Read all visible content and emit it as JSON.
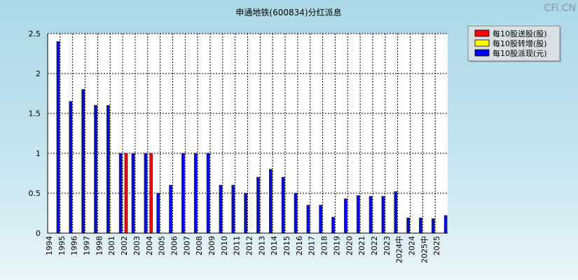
{
  "watermark": "CFi.CN",
  "chart_data": {
    "type": "bar",
    "title": "申通地铁(600834)分红派息",
    "xlabel": "",
    "ylabel": "",
    "ylim": [
      0,
      2.5
    ],
    "yticks": [
      "0",
      "0.5",
      "1",
      "1.5",
      "2",
      "2.5"
    ],
    "ytick_values": [
      0,
      0.5,
      1,
      1.5,
      2,
      2.5
    ],
    "grid": true,
    "legend_position": "top-right",
    "categories": [
      "1994",
      "1995",
      "1996",
      "1997",
      "1998",
      "2001",
      "2002",
      "2003",
      "2004",
      "2005",
      "2006",
      "2007",
      "2008",
      "2009",
      "2010",
      "2011",
      "2012",
      "2013",
      "2014",
      "2015",
      "2016",
      "2017",
      "2018",
      "2019",
      "2020",
      "2021",
      "2022",
      "2023",
      "2024中",
      "2024",
      "2025中",
      "2025"
    ],
    "series": [
      {
        "name": "每10股送股(股)",
        "color": "#ff0000",
        "values": [
          0,
          0,
          0,
          0,
          0,
          0,
          1,
          0,
          1,
          0,
          0,
          0,
          0,
          0,
          0,
          0,
          0,
          0,
          0,
          0,
          0,
          0,
          0,
          0,
          0,
          0,
          0,
          0,
          0,
          0,
          0,
          0
        ]
      },
      {
        "name": "每10股转增(股)",
        "color": "#ffff00",
        "values": [
          0,
          0,
          0,
          0,
          0,
          0,
          0,
          0,
          0,
          0,
          0,
          0,
          0,
          0,
          0,
          0,
          0,
          0,
          0,
          0,
          0,
          0,
          0,
          0,
          0,
          0,
          0,
          0,
          0,
          0,
          0,
          0
        ]
      },
      {
        "name": "每10股派现(元)",
        "color": "#0000ff",
        "values": [
          2.4,
          1.65,
          1.8,
          1.6,
          1.6,
          1.0,
          1.0,
          1.0,
          0.5,
          0.6,
          1.0,
          1.0,
          1.0,
          0.6,
          0.6,
          0.5,
          0.7,
          0.8,
          0.7,
          0.5,
          0.35,
          0.35,
          0.2,
          0.43,
          0.47,
          0.46,
          0.46,
          0.52,
          0.19,
          0.19,
          0.18,
          0.22
        ]
      }
    ]
  }
}
